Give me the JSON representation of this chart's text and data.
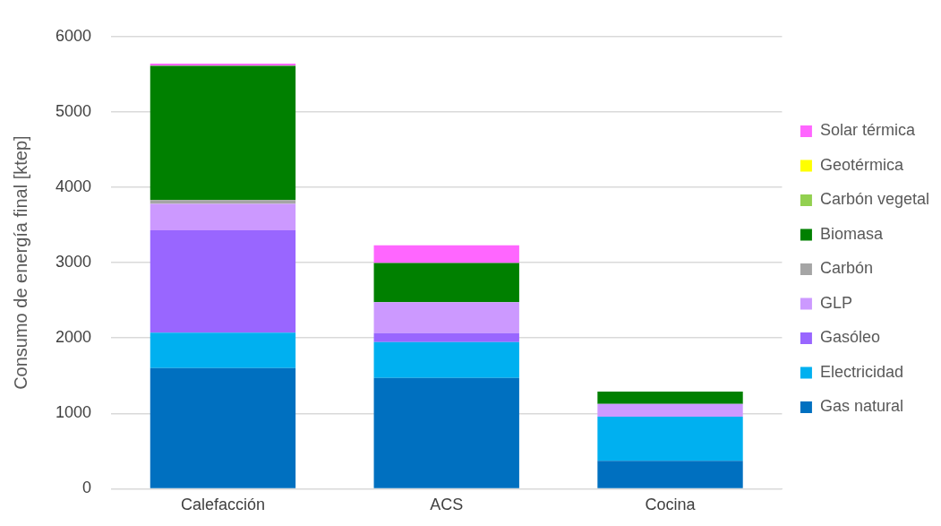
{
  "chart_data": {
    "type": "bar",
    "stacked": true,
    "ylabel": "Consumo de energía final [ktep]",
    "categories": [
      "Calefacción",
      "ACS",
      "Cocina"
    ],
    "series": [
      {
        "name": "Gas natural",
        "color": "#0070c0",
        "values": [
          1600,
          1470,
          370
        ]
      },
      {
        "name": "Electricidad",
        "color": "#00b0f0",
        "values": [
          470,
          475,
          585
        ]
      },
      {
        "name": "Gasóleo",
        "color": "#9966ff",
        "values": [
          1360,
          120,
          0
        ]
      },
      {
        "name": "GLP",
        "color": "#cc99ff",
        "values": [
          350,
          410,
          170
        ]
      },
      {
        "name": "Carbón",
        "color": "#a5a5a5",
        "values": [
          50,
          0,
          0
        ]
      },
      {
        "name": "Biomasa",
        "color": "#008000",
        "values": [
          1780,
          520,
          165
        ]
      },
      {
        "name": "Carbón vegetal",
        "color": "#92d050",
        "values": [
          5,
          0,
          0
        ]
      },
      {
        "name": "Geotérmica",
        "color": "#ffff00",
        "values": [
          0,
          0,
          0
        ]
      },
      {
        "name": "Solar térmica",
        "color": "#ff66ff",
        "values": [
          25,
          235,
          0
        ]
      }
    ],
    "ylim": [
      0,
      6000
    ],
    "yticks": [
      0,
      1000,
      2000,
      3000,
      4000,
      5000,
      6000
    ],
    "grid": "y",
    "legend": "right"
  }
}
